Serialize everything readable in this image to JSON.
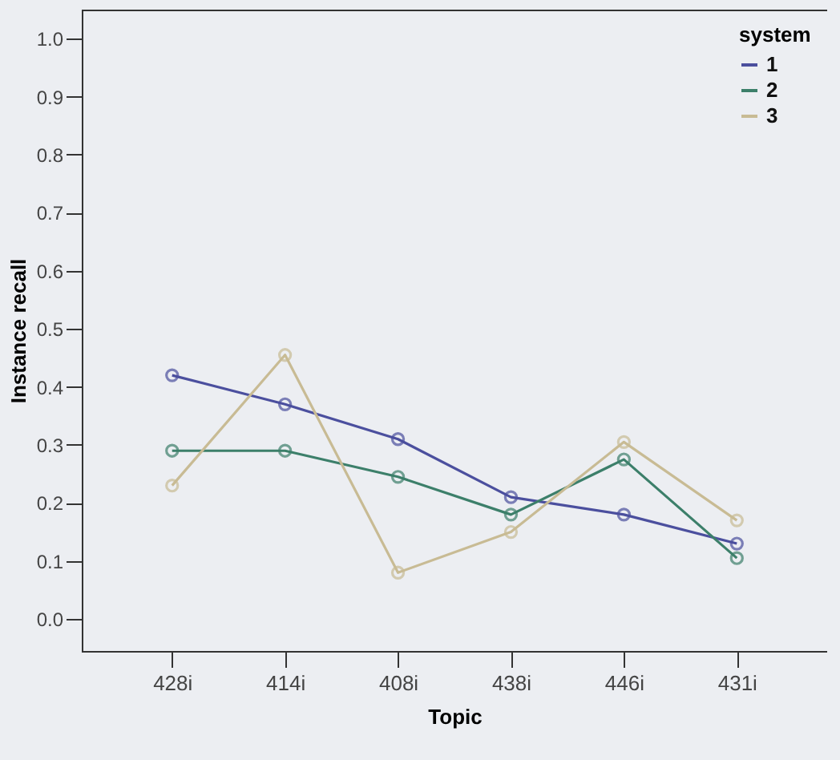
{
  "chart_data": {
    "type": "line",
    "xlabel": "Topic",
    "ylabel": "Instance recall",
    "legend_title": "system",
    "categories": [
      "428i",
      "414i",
      "408i",
      "438i",
      "446i",
      "431i"
    ],
    "series": [
      {
        "name": "1",
        "color": "#4b4f9e",
        "values": [
          0.42,
          0.37,
          0.31,
          0.21,
          0.18,
          0.13
        ]
      },
      {
        "name": "2",
        "color": "#3c7f6a",
        "values": [
          0.29,
          0.29,
          0.245,
          0.18,
          0.275,
          0.105
        ]
      },
      {
        "name": "3",
        "color": "#c8bb94",
        "values": [
          0.23,
          0.455,
          0.08,
          0.15,
          0.305,
          0.17
        ]
      }
    ],
    "ylim": [
      -0.055,
      1.05
    ],
    "yticks": [
      {
        "value": 0,
        "label": "0.0"
      },
      0.1,
      0.2,
      0.3,
      0.4,
      0.5,
      0.6,
      0.7,
      0.8,
      0.9,
      {
        "value": 1,
        "label": "1.0"
      }
    ],
    "grid": false,
    "legend": "top right",
    "marker": "circle",
    "line_style": "solid"
  }
}
